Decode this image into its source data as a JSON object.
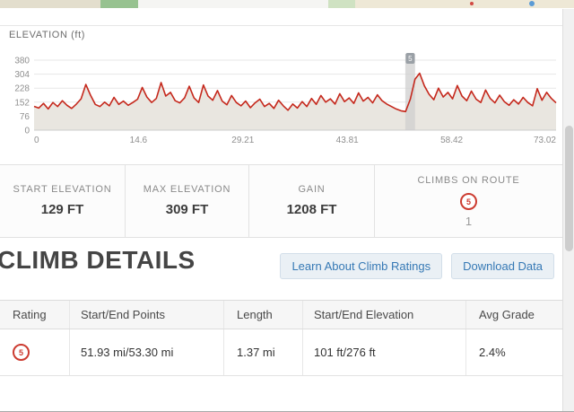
{
  "colors": {
    "accent_red": "#cc3b30",
    "link_blue": "#3679b5",
    "chart_line": "#c5281c",
    "chart_fill": "#e9e6e0"
  },
  "chart_data": {
    "type": "area",
    "title": "ELEVATION (ft)",
    "xlabel": "",
    "ylabel": "ft",
    "x_range_mi": [
      0,
      73.02
    ],
    "y_range_ft": [
      0,
      380
    ],
    "y_ticks": [
      0,
      76,
      152,
      228,
      304,
      380
    ],
    "x_ticks": [
      0,
      14.6,
      29.21,
      43.81,
      58.42,
      73.02
    ],
    "grid": "horizontal",
    "line_color": "#c5281c",
    "fill_color": "#e9e6e0",
    "climb_marker": {
      "start_mi": 51.93,
      "end_mi": 53.3,
      "badge": "5"
    },
    "values_ft": [
      129,
      120,
      145,
      115,
      150,
      128,
      160,
      135,
      118,
      142,
      170,
      248,
      190,
      140,
      128,
      152,
      132,
      178,
      140,
      158,
      135,
      150,
      168,
      232,
      180,
      150,
      172,
      258,
      185,
      205,
      160,
      148,
      175,
      238,
      175,
      150,
      245,
      185,
      162,
      215,
      158,
      138,
      188,
      150,
      132,
      158,
      122,
      148,
      168,
      128,
      145,
      118,
      162,
      132,
      108,
      142,
      120,
      155,
      128,
      172,
      140,
      188,
      152,
      170,
      142,
      198,
      155,
      175,
      145,
      202,
      158,
      178,
      148,
      192,
      160,
      142,
      128,
      115,
      105,
      101,
      168,
      276,
      309,
      240,
      195,
      165,
      228,
      180,
      205,
      170,
      242,
      185,
      160,
      212,
      168,
      150,
      218,
      172,
      148,
      190,
      155,
      135,
      165,
      142,
      178,
      150,
      132,
      225,
      162,
      205,
      172,
      148
    ]
  },
  "stats": {
    "start_elevation": {
      "label": "START ELEVATION",
      "value": "129 FT"
    },
    "max_elevation": {
      "label": "MAX ELEVATION",
      "value": "309 FT"
    },
    "gain": {
      "label": "GAIN",
      "value": "1208 FT"
    },
    "climbs": {
      "label": "CLIMBS ON ROUTE",
      "badge": "5",
      "count": "1"
    }
  },
  "climb_details": {
    "heading": "CLIMB DETAILS",
    "buttons": [
      {
        "label": "Learn About Climb Ratings"
      },
      {
        "label": "Download Data"
      }
    ],
    "table": {
      "columns": [
        "Rating",
        "Start/End Points",
        "Length",
        "Start/End Elevation",
        "Avg Grade"
      ],
      "rows": [
        {
          "rating": "5",
          "points": "51.93 mi/53.30 mi",
          "length": "1.37 mi",
          "elevation": "101 ft/276 ft",
          "grade": "2.4%"
        }
      ]
    }
  }
}
